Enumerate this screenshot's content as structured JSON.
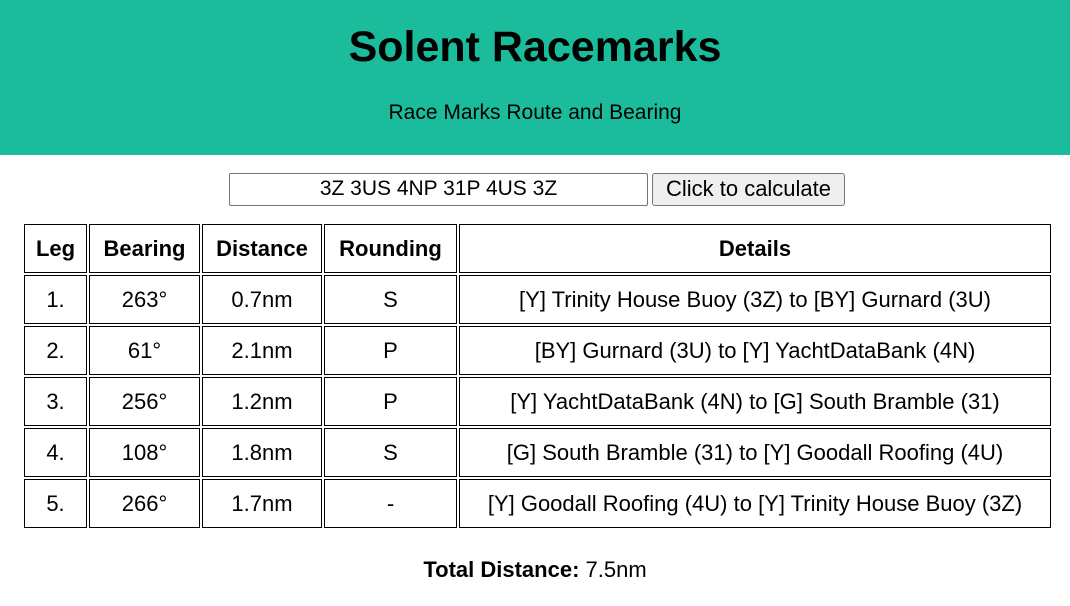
{
  "header": {
    "title": "Solent Racemarks",
    "subtitle": "Race Marks Route and Bearing",
    "background_color": "#1abc9c"
  },
  "controls": {
    "route_value": "3Z 3US 4NP 31P 4US 3Z",
    "calculate_label": "Click to calculate"
  },
  "table": {
    "headers": [
      "Leg",
      "Bearing",
      "Distance",
      "Rounding",
      "Details"
    ],
    "rows": [
      {
        "leg": "1.",
        "bearing": "263°",
        "distance": "0.7nm",
        "rounding": "S",
        "details": "[Y] Trinity House Buoy (3Z) to [BY] Gurnard (3U)"
      },
      {
        "leg": "2.",
        "bearing": "61°",
        "distance": "2.1nm",
        "rounding": "P",
        "details": "[BY] Gurnard (3U) to [Y] YachtDataBank (4N)"
      },
      {
        "leg": "3.",
        "bearing": "256°",
        "distance": "1.2nm",
        "rounding": "P",
        "details": "[Y] YachtDataBank (4N) to [G] South Bramble (31)"
      },
      {
        "leg": "4.",
        "bearing": "108°",
        "distance": "1.8nm",
        "rounding": "S",
        "details": "[G] South Bramble (31) to [Y] Goodall Roofing (4U)"
      },
      {
        "leg": "5.",
        "bearing": "266°",
        "distance": "1.7nm",
        "rounding": "-",
        "details": "[Y] Goodall Roofing (4U) to [Y] Trinity House Buoy (3Z)"
      }
    ]
  },
  "total": {
    "label": "Total Distance:",
    "value": "7.5nm"
  }
}
